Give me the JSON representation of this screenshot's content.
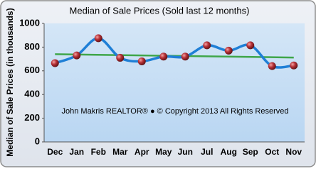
{
  "chart_data": {
    "type": "line",
    "title": "Median of Sale Prices (Sold last 12 months)",
    "y_label": "Median of Sale Prices (in thousands)",
    "annotation": "John Makris REALTOR®  ●  © Copyright 2013 All Rights Reserved",
    "categories": [
      "Dec",
      "Jan",
      "Feb",
      "Mar",
      "Apr",
      "May",
      "Jun",
      "Jul",
      "Aug",
      "Sep",
      "Oct",
      "Nov"
    ],
    "series": [
      {
        "color": "#1f7fd6",
        "marker_color": "#a8262b",
        "values": [
          665,
          730,
          875,
          710,
          680,
          720,
          720,
          815,
          770,
          815,
          640,
          645
        ]
      }
    ],
    "trendline": {
      "color": "#3fa64a",
      "values": [
        740,
        712
      ]
    },
    "ylim": [
      0,
      1000
    ],
    "yticks": [
      0,
      200,
      400,
      600,
      800,
      1000
    ],
    "grid": false
  }
}
